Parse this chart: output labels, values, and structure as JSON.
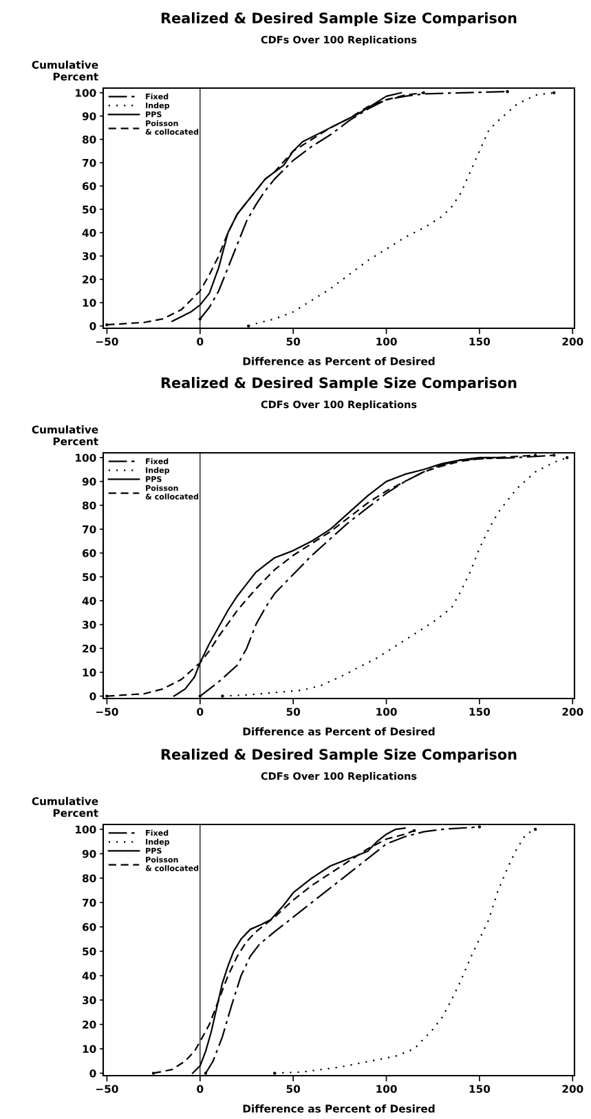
{
  "chart_data": [
    {
      "type": "line",
      "title": "Realized & Desired Sample Size Comparison",
      "subtitle": "CDFs Over 100 Replications",
      "xlabel": "Difference as Percent of Desired",
      "ylabel": "Cumulative\nPercent",
      "xlim": [
        -52,
        201
      ],
      "ylim": [
        -1,
        102
      ],
      "xticks": [
        -50,
        0,
        50,
        100,
        150,
        200
      ],
      "yticks": [
        0,
        10,
        20,
        30,
        40,
        50,
        60,
        70,
        80,
        90,
        100
      ],
      "grid": false,
      "legend": "top left",
      "marker": "none",
      "ref_lines": [
        {
          "axis": "x",
          "value": 0,
          "color": "#000000",
          "line_style": "solid"
        }
      ],
      "series": [
        {
          "name": "Fixed",
          "color": "#000000",
          "line_style": "dashdot",
          "x": [
            0,
            5,
            10,
            15,
            20,
            25,
            30,
            35,
            40,
            50,
            60,
            70,
            80,
            90,
            100,
            110,
            120,
            140,
            165
          ],
          "values": [
            3,
            8,
            15,
            25,
            35,
            45,
            52,
            58,
            63,
            71,
            77,
            82,
            88,
            93,
            97,
            98.5,
            99.5,
            100,
            100.5
          ]
        },
        {
          "name": "Indep",
          "color": "#000000",
          "line_style": "dotted",
          "x": [
            26,
            30,
            40,
            50,
            60,
            70,
            80,
            90,
            100,
            110,
            120,
            130,
            135,
            140,
            145,
            150,
            155,
            160,
            170,
            180,
            190
          ],
          "values": [
            0,
            1,
            3,
            6,
            11,
            16,
            22,
            28,
            33,
            38,
            42,
            47,
            51,
            57,
            66,
            75,
            84,
            88,
            95,
            99,
            100
          ]
        },
        {
          "name": "PPS",
          "color": "#000000",
          "line_style": "solid",
          "x": [
            -15,
            -5,
            0,
            5,
            10,
            15,
            20,
            25,
            30,
            35,
            45,
            50,
            55,
            65,
            75,
            85,
            95,
            100,
            108
          ],
          "values": [
            2,
            6,
            9,
            14,
            25,
            40,
            48,
            53,
            58,
            63,
            69,
            75,
            79,
            83,
            87,
            91,
            96,
            98.5,
            100
          ]
        },
        {
          "name": "Poisson\n& collocated",
          "color": "#000000",
          "line_style": "dashed",
          "x": [
            -50,
            -30,
            -20,
            -10,
            0,
            5,
            10,
            15,
            20,
            25,
            30,
            35,
            40,
            50,
            60,
            70,
            80,
            90,
            100,
            110,
            120
          ],
          "values": [
            0.5,
            1.5,
            3,
            7,
            15,
            22,
            30,
            40,
            48,
            53,
            58,
            63,
            66,
            75,
            80,
            85,
            89,
            94,
            97,
            99,
            100
          ]
        }
      ]
    },
    {
      "type": "line",
      "title": "Realized & Desired Sample Size Comparison",
      "subtitle": "CDFs Over 100 Replications",
      "xlabel": "Difference as Percent of Desired",
      "ylabel": "Cumulative\nPercent",
      "xlim": [
        -52,
        201
      ],
      "ylim": [
        -1,
        102
      ],
      "xticks": [
        -50,
        0,
        50,
        100,
        150,
        200
      ],
      "yticks": [
        0,
        10,
        20,
        30,
        40,
        50,
        60,
        70,
        80,
        90,
        100
      ],
      "grid": false,
      "legend": "top left",
      "marker": "none",
      "ref_lines": [
        {
          "axis": "x",
          "value": 0,
          "color": "#000000",
          "line_style": "solid"
        }
      ],
      "series": [
        {
          "name": "Fixed",
          "color": "#000000",
          "line_style": "dashdot",
          "x": [
            0,
            10,
            20,
            25,
            30,
            35,
            40,
            50,
            60,
            70,
            80,
            90,
            100,
            110,
            120,
            130,
            140,
            150,
            170,
            190
          ],
          "values": [
            0,
            6,
            13,
            20,
            30,
            37,
            43,
            51,
            59,
            66,
            73,
            79,
            85,
            90,
            94,
            97,
            99,
            99.5,
            100,
            101
          ]
        },
        {
          "name": "Indep",
          "color": "#000000",
          "line_style": "dotted",
          "x": [
            12,
            25,
            40,
            55,
            65,
            75,
            85,
            95,
            105,
            115,
            125,
            135,
            140,
            145,
            150,
            155,
            160,
            170,
            180,
            190,
            197
          ],
          "values": [
            0,
            0.5,
            1.5,
            2.5,
            4.5,
            8,
            12,
            16,
            21,
            26,
            31,
            37,
            44,
            52,
            62,
            70,
            77,
            87,
            94,
            98,
            100
          ]
        },
        {
          "name": "PPS",
          "color": "#000000",
          "line_style": "solid",
          "x": [
            -14,
            -8,
            -3,
            0,
            5,
            10,
            15,
            20,
            25,
            30,
            35,
            40,
            50,
            60,
            70,
            80,
            90,
            100,
            110,
            120,
            130,
            140,
            150,
            160
          ],
          "values": [
            0,
            3,
            8,
            14,
            22,
            29,
            36,
            42,
            47,
            52,
            55,
            58,
            61,
            65,
            70,
            77,
            84,
            90,
            93,
            95,
            97.5,
            99,
            100,
            100
          ]
        },
        {
          "name": "Poisson\n& collocated",
          "color": "#000000",
          "line_style": "dashed",
          "x": [
            -50,
            -30,
            -20,
            -10,
            0,
            5,
            10,
            20,
            30,
            40,
            50,
            60,
            70,
            80,
            90,
            100,
            110,
            120,
            130,
            140,
            150,
            160,
            180
          ],
          "values": [
            0,
            1,
            3,
            7,
            14,
            19,
            25,
            36,
            45,
            53,
            59,
            64,
            69,
            75,
            81,
            86,
            90,
            94,
            96.5,
            98.5,
            99.5,
            100,
            101
          ]
        }
      ]
    },
    {
      "type": "line",
      "title": "Realized & Desired Sample Size Comparison",
      "subtitle": "CDFs Over 100 Replications",
      "xlabel": "Difference as Percent of Desired",
      "ylabel": "Cumulative\nPercent",
      "xlim": [
        -52,
        201
      ],
      "ylim": [
        -1,
        102
      ],
      "xticks": [
        -50,
        0,
        50,
        100,
        150,
        200
      ],
      "yticks": [
        0,
        10,
        20,
        30,
        40,
        50,
        60,
        70,
        80,
        90,
        100
      ],
      "grid": false,
      "legend": "top left",
      "marker": "none",
      "ref_lines": [
        {
          "axis": "x",
          "value": 0,
          "color": "#000000",
          "line_style": "solid"
        }
      ],
      "series": [
        {
          "name": "Fixed",
          "color": "#000000",
          "line_style": "dashdot",
          "x": [
            3,
            7,
            12,
            17,
            22,
            27,
            32,
            40,
            50,
            60,
            70,
            80,
            90,
            100,
            110,
            120,
            130,
            150
          ],
          "values": [
            0,
            5,
            15,
            28,
            40,
            48,
            53,
            58,
            64,
            70,
            76,
            82,
            88,
            94,
            97,
            99,
            100,
            101
          ]
        },
        {
          "name": "Indep",
          "color": "#000000",
          "line_style": "dotted",
          "x": [
            40,
            55,
            65,
            75,
            85,
            95,
            105,
            115,
            120,
            125,
            130,
            135,
            140,
            145,
            150,
            155,
            160,
            165,
            170,
            175,
            180
          ],
          "values": [
            0,
            0.5,
            1.5,
            2.5,
            4,
            5.5,
            7,
            10,
            14,
            18,
            23,
            30,
            38,
            47,
            55,
            63,
            75,
            84,
            92,
            98,
            100
          ]
        },
        {
          "name": "PPS",
          "color": "#000000",
          "line_style": "solid",
          "x": [
            -4,
            0,
            3,
            6,
            9,
            12,
            15,
            18,
            22,
            27,
            33,
            38,
            45,
            50,
            60,
            70,
            80,
            90,
            95,
            100,
            105,
            110
          ],
          "values": [
            0,
            3,
            9,
            17,
            27,
            37,
            44,
            50,
            55,
            59,
            61,
            63,
            69,
            74,
            80,
            85,
            88,
            91,
            95,
            98,
            100,
            100.5
          ]
        },
        {
          "name": "Poisson\n& collocated",
          "color": "#000000",
          "line_style": "dashed",
          "x": [
            -25,
            -15,
            -8,
            -3,
            0,
            5,
            10,
            15,
            20,
            25,
            30,
            40,
            50,
            60,
            70,
            80,
            90,
            100,
            110,
            115
          ],
          "values": [
            0,
            1.5,
            5,
            9,
            13,
            20,
            30,
            40,
            48,
            54,
            58,
            64,
            71,
            77,
            82,
            87,
            92,
            96,
            98,
            99.5
          ]
        }
      ]
    }
  ]
}
